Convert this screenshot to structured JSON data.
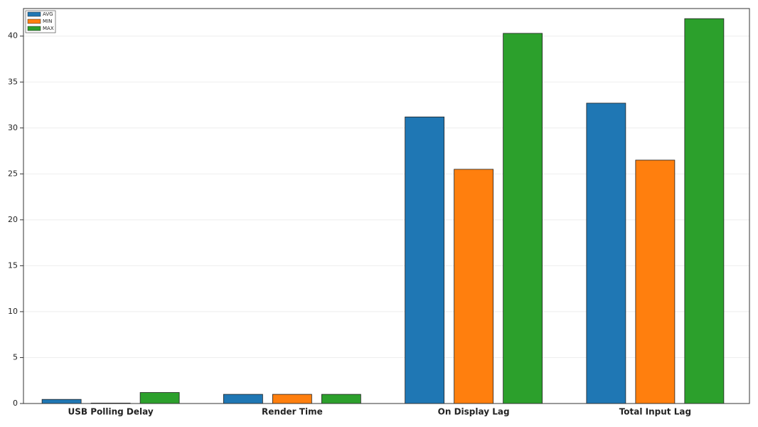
{
  "chart_data": {
    "type": "bar",
    "categories": [
      "USB Polling Delay",
      "Render Time",
      "On Display Lag",
      "Total Input Lag"
    ],
    "series": [
      {
        "name": "AVG",
        "color": "#1f77b4",
        "values": [
          0.45,
          1.0,
          31.2,
          32.7
        ]
      },
      {
        "name": "MIN",
        "color": "#ff7f0e",
        "values": [
          0.05,
          1.0,
          25.5,
          26.5
        ]
      },
      {
        "name": "MAX",
        "color": "#2ca02c",
        "values": [
          1.2,
          1.0,
          40.3,
          41.9
        ]
      }
    ],
    "ylim": [
      0,
      43
    ],
    "yticks": [
      0,
      5,
      10,
      15,
      20,
      25,
      30,
      35,
      40
    ],
    "grid": true,
    "legend": "upper-left"
  }
}
